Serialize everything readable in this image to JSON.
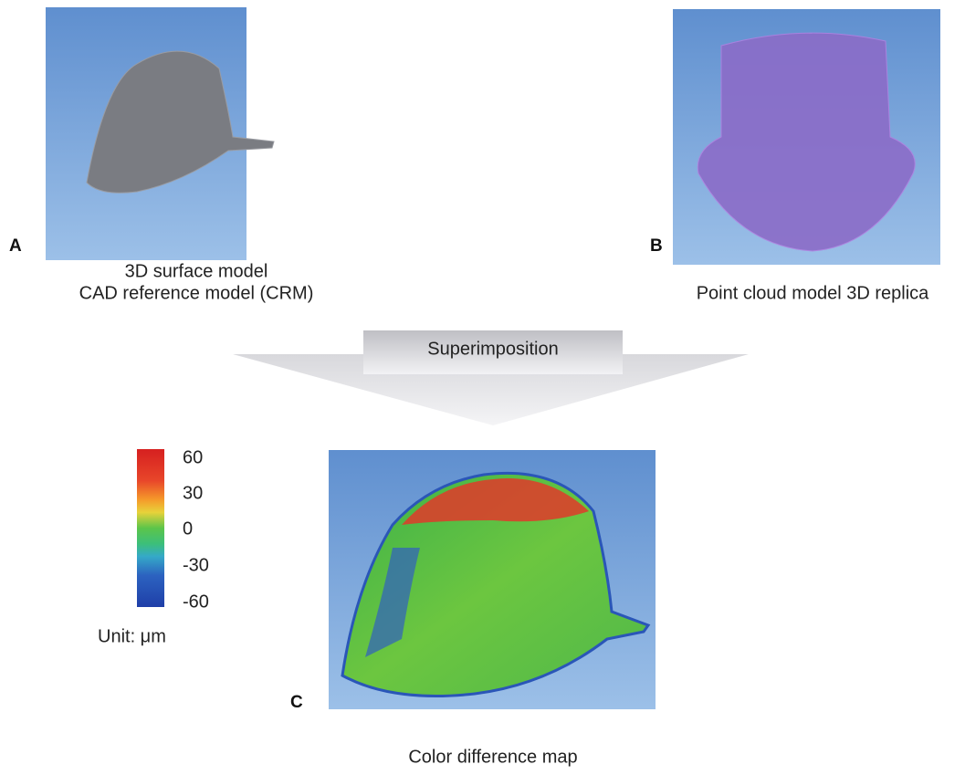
{
  "panels": [
    {
      "label": "A",
      "caption": [
        "3D surface model",
        "CAD reference model (CRM)"
      ]
    },
    {
      "label": "B",
      "caption": [
        "Point cloud model 3D replica"
      ]
    },
    {
      "label": "C",
      "caption": [
        "Color difference map"
      ]
    }
  ],
  "arrow": {
    "label": "Superimposition"
  },
  "colorbar": {
    "ticks": [
      60,
      30,
      0,
      -30,
      -60
    ],
    "unit_label": "Unit: μm"
  }
}
